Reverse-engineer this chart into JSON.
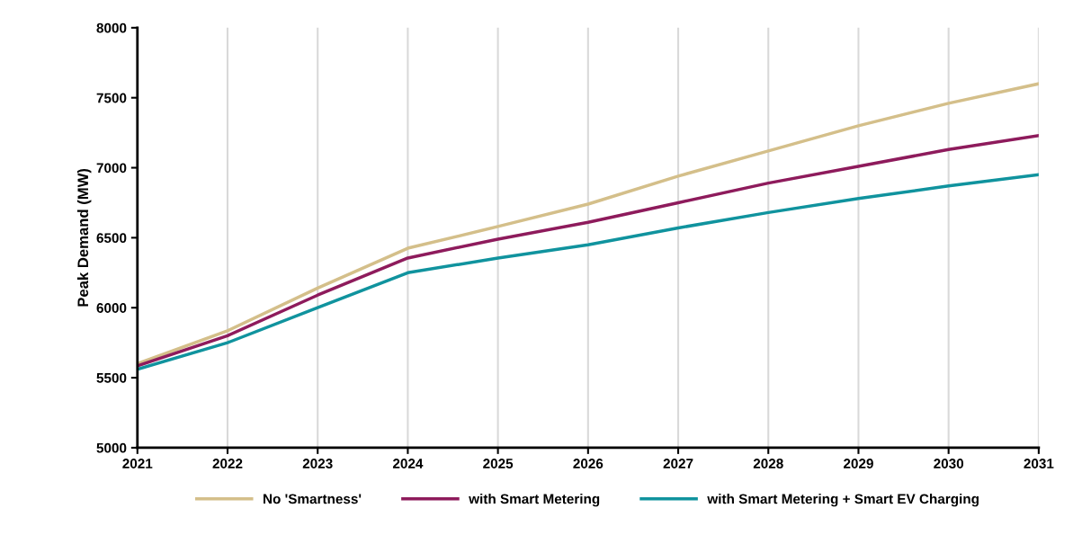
{
  "chart_data": {
    "type": "line",
    "ylabel": "Peak Demand (MW)",
    "x": [
      2021,
      2022,
      2023,
      2024,
      2025,
      2026,
      2027,
      2028,
      2029,
      2030,
      2031
    ],
    "series": [
      {
        "name": "No 'Smartness'",
        "color": "#d4bf8a",
        "values": [
          5600,
          5835,
          6140,
          6425,
          6580,
          6740,
          6940,
          7120,
          7300,
          7460,
          7600
        ]
      },
      {
        "name": "with Smart Metering",
        "color": "#8e1b5c",
        "values": [
          5585,
          5800,
          6090,
          6355,
          6490,
          6610,
          6750,
          6890,
          7010,
          7130,
          7230
        ]
      },
      {
        "name": "with Smart Metering + Smart EV Charging",
        "color": "#10939e",
        "values": [
          5560,
          5750,
          6000,
          6250,
          6355,
          6450,
          6570,
          6680,
          6780,
          6870,
          6950
        ]
      }
    ],
    "xlim": [
      2021,
      2031
    ],
    "xticks": [
      2021,
      2022,
      2023,
      2024,
      2025,
      2026,
      2027,
      2028,
      2029,
      2030,
      2031
    ],
    "ylim": [
      5000,
      8000
    ],
    "yticks": [
      5000,
      5500,
      6000,
      6500,
      7000,
      7500,
      8000
    ],
    "grid": "x",
    "legend": "bottom",
    "marker": "none",
    "line_style": "solid"
  }
}
